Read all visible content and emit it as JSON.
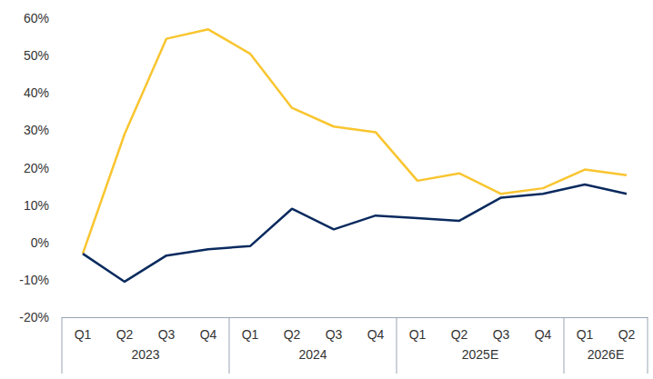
{
  "chart_data": {
    "type": "line",
    "categories": [
      "Q1",
      "Q2",
      "Q3",
      "Q4",
      "Q1",
      "Q2",
      "Q3",
      "Q4",
      "Q1",
      "Q2",
      "Q3",
      "Q4",
      "Q1",
      "Q2"
    ],
    "category_groups": [
      "2023",
      "2023",
      "2023",
      "2023",
      "2024",
      "2024",
      "2024",
      "2024",
      "2025E",
      "2025E",
      "2025E",
      "2025E",
      "2026E",
      "2026E"
    ],
    "series": [
      {
        "color": "#F9C52F",
        "values": [
          -3,
          29,
          54.5,
          57,
          50.5,
          36,
          31,
          29.5,
          16.5,
          18.5,
          13,
          14.5,
          19.5,
          18
        ]
      },
      {
        "color": "#0A2A5E",
        "values": [
          -3,
          -10.5,
          -3.5,
          -1.8,
          -1,
          9,
          3.5,
          7.2,
          6.5,
          5.8,
          12,
          13,
          15.5,
          13
        ]
      }
    ],
    "ylim": [
      -20,
      60
    ],
    "yticks": [
      {
        "value": -20,
        "label": "-20%"
      },
      {
        "value": -10,
        "label": "-10%"
      },
      {
        "value": 0,
        "label": "0%"
      },
      {
        "value": 10,
        "label": "10%"
      },
      {
        "value": 20,
        "label": "20%"
      },
      {
        "value": 30,
        "label": "30%"
      },
      {
        "value": 40,
        "label": "40%"
      },
      {
        "value": 50,
        "label": "50%"
      },
      {
        "value": 60,
        "label": "60%"
      }
    ],
    "grid": false
  }
}
